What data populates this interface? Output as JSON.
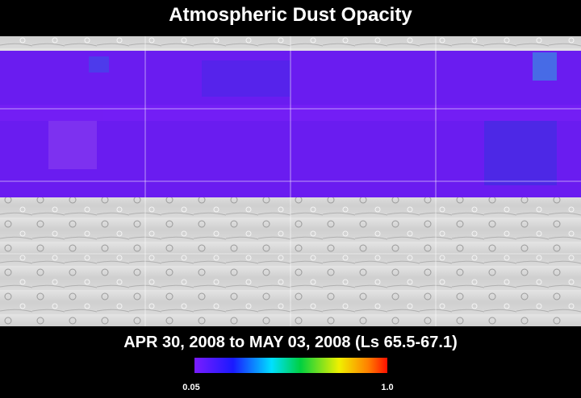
{
  "header": {
    "title": "Atmospheric Dust Opacity"
  },
  "footer": {
    "date_range": "APR 30, 2008 to MAY 03, 2008 (Ls 65.5-67.1)"
  },
  "colorbar": {
    "min_label": "0.05",
    "max_label": "1.0"
  }
}
